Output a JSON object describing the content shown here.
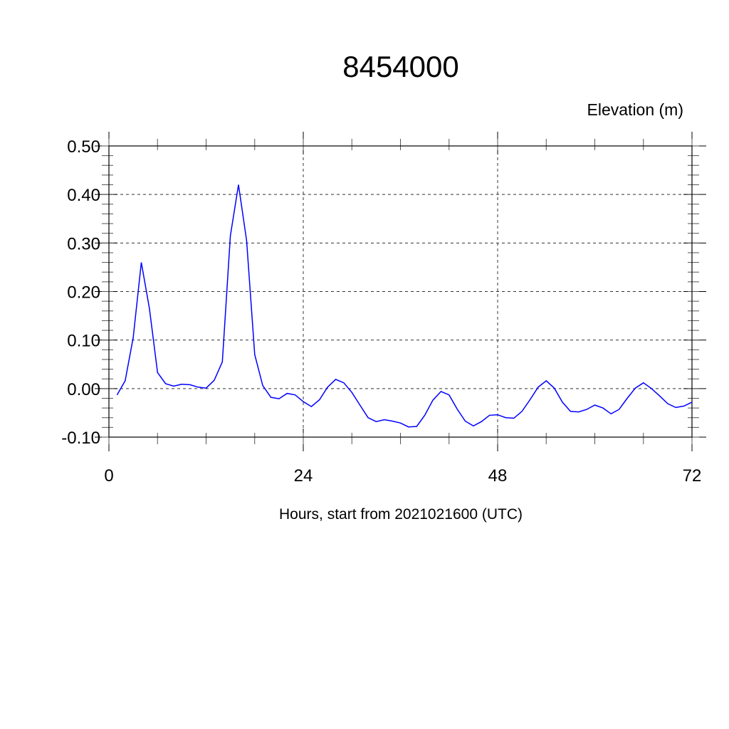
{
  "chart_data": {
    "type": "line",
    "title": "8454000",
    "ylabel_right_top": "Elevation (m)",
    "xlabel": "Hours, start from 2021021600 (UTC)",
    "xlim": [
      0,
      72
    ],
    "ylim": [
      -0.1,
      0.5
    ],
    "xticks": [
      0,
      24,
      48,
      72
    ],
    "xtick_labels": [
      "0",
      "24",
      "48",
      "72"
    ],
    "yticks": [
      -0.1,
      0.0,
      0.1,
      0.2,
      0.3,
      0.4,
      0.5
    ],
    "ytick_labels": [
      "-0.10",
      "0.00",
      "0.10",
      "0.20",
      "0.30",
      "0.40",
      "0.50"
    ],
    "grid": true,
    "line_color": "#0000ff",
    "series": [
      {
        "name": "Elevation",
        "x": [
          1,
          2,
          3,
          4,
          5,
          6,
          7,
          8,
          9,
          10,
          11,
          12,
          13,
          14,
          15,
          16,
          17,
          18,
          19,
          20,
          21,
          22,
          23,
          24,
          25,
          26,
          27,
          28,
          29,
          30,
          31,
          32,
          33,
          34,
          35,
          36,
          37,
          38,
          39,
          40,
          41,
          42,
          43,
          44,
          45,
          46,
          47,
          48,
          49,
          50,
          51,
          52,
          53,
          54,
          55,
          56,
          57,
          58,
          59,
          60,
          61,
          62,
          63,
          64,
          65,
          66,
          67,
          68,
          69,
          70,
          71,
          72
        ],
        "values": [
          -0.013,
          0.016,
          0.105,
          0.26,
          0.165,
          0.033,
          0.01,
          0.005,
          0.009,
          0.008,
          0.003,
          0.001,
          0.017,
          0.055,
          0.315,
          0.42,
          0.305,
          0.07,
          0.006,
          -0.018,
          -0.021,
          -0.01,
          -0.013,
          -0.027,
          -0.037,
          -0.023,
          0.003,
          0.019,
          0.012,
          -0.008,
          -0.034,
          -0.06,
          -0.068,
          -0.064,
          -0.067,
          -0.071,
          -0.079,
          -0.078,
          -0.055,
          -0.024,
          -0.006,
          -0.013,
          -0.042,
          -0.067,
          -0.077,
          -0.068,
          -0.055,
          -0.054,
          -0.06,
          -0.061,
          -0.047,
          -0.023,
          0.003,
          0.016,
          0.001,
          -0.028,
          -0.047,
          -0.048,
          -0.043,
          -0.034,
          -0.04,
          -0.052,
          -0.043,
          -0.02,
          0.001,
          0.012,
          0.0,
          -0.015,
          -0.031,
          -0.039,
          -0.036,
          -0.028
        ]
      }
    ]
  }
}
